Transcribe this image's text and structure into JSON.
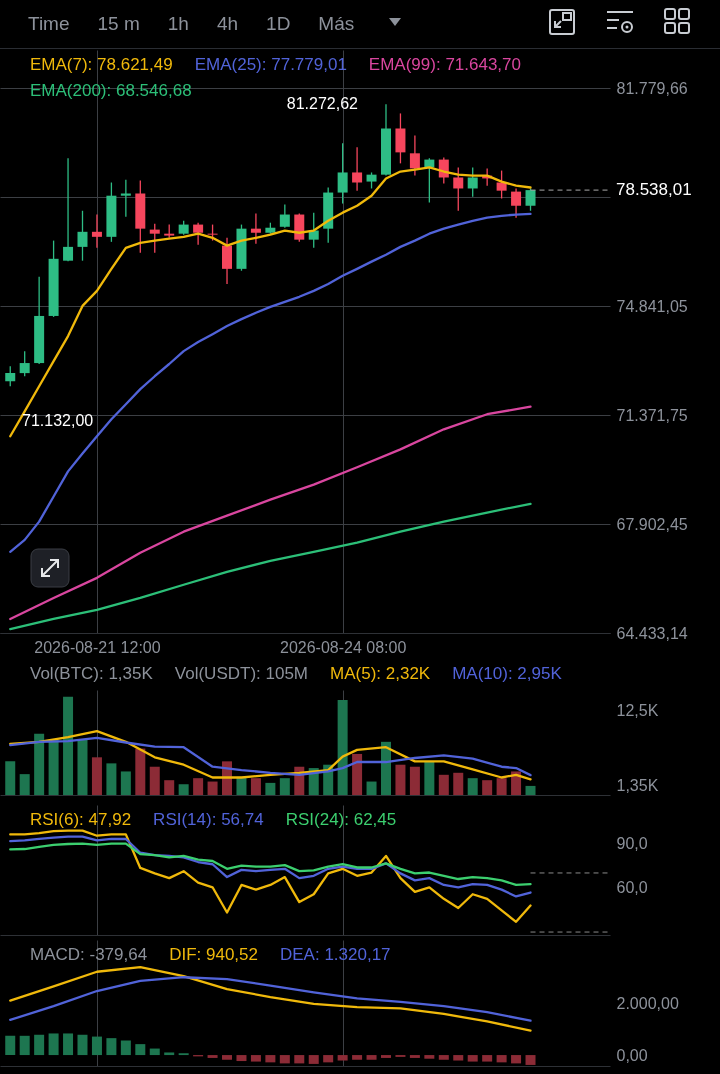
{
  "chart_data": [
    {
      "type": "other",
      "annotations": [
        "Time",
        "15 m",
        "1h",
        "4h",
        "1D",
        "Más"
      ]
    },
    {
      "type": "candlestick",
      "legend": "top",
      "grid": true,
      "x": [
        "2026-08-20T12:00",
        "2026-08-20T16:00",
        "2026-08-20T20:00",
        "2026-08-21T00:00",
        "2026-08-21T04:00",
        "2026-08-21T08:00",
        "2026-08-21T12:00",
        "2026-08-21T16:00",
        "2026-08-21T20:00",
        "2026-08-22T00:00",
        "2026-08-22T04:00",
        "2026-08-22T08:00",
        "2026-08-22T12:00",
        "2026-08-22T16:00",
        "2026-08-22T20:00",
        "2026-08-23T00:00",
        "2026-08-23T04:00",
        "2026-08-23T08:00",
        "2026-08-23T12:00",
        "2026-08-23T16:00",
        "2026-08-23T20:00",
        "2026-08-24T00:00",
        "2026-08-24T04:00",
        "2026-08-24T08:00",
        "2026-08-24T12:00",
        "2026-08-24T16:00",
        "2026-08-24T20:00",
        "2026-08-25T00:00",
        "2026-08-25T04:00",
        "2026-08-25T08:00",
        "2026-08-25T12:00",
        "2026-08-25T16:00",
        "2026-08-25T20:00",
        "2026-08-26T00:00",
        "2026-08-26T04:00",
        "2026-08-26T08:00",
        "2026-08-26T12:00"
      ],
      "ohlc": [
        [
          72450,
          72930,
          72290,
          72710
        ],
        [
          72710,
          73410,
          72610,
          73030
        ],
        [
          73030,
          75780,
          73000,
          74530
        ],
        [
          74530,
          76930,
          74500,
          76350
        ],
        [
          76290,
          79550,
          76270,
          76730
        ],
        [
          76730,
          77880,
          76290,
          77210
        ],
        [
          77210,
          77760,
          76700,
          77050
        ],
        [
          77050,
          78780,
          76890,
          78360
        ],
        [
          78360,
          78870,
          77690,
          78430
        ],
        [
          78430,
          78840,
          76540,
          77310
        ],
        [
          77280,
          77470,
          76540,
          77150
        ],
        [
          77150,
          77440,
          77020,
          77090
        ],
        [
          77150,
          77560,
          77120,
          77440
        ],
        [
          77440,
          77500,
          76800,
          77180
        ],
        [
          77150,
          77440,
          76930,
          77120
        ],
        [
          76770,
          77020,
          75550,
          76030
        ],
        [
          76030,
          77440,
          75970,
          77310
        ],
        [
          77310,
          77790,
          76830,
          77180
        ],
        [
          77180,
          77500,
          77150,
          77340
        ],
        [
          77370,
          78080,
          77340,
          77760
        ],
        [
          77760,
          77790,
          76890,
          76960
        ],
        [
          76960,
          77820,
          76700,
          77250
        ],
        [
          77310,
          78620,
          76860,
          78460
        ],
        [
          78460,
          80030,
          78110,
          79100
        ],
        [
          79100,
          79900,
          78520,
          78780
        ],
        [
          78810,
          79100,
          78590,
          79030
        ],
        [
          79030,
          81272.62,
          79000,
          80500
        ],
        [
          80500,
          80980,
          79390,
          79740
        ],
        [
          79710,
          80280,
          79000,
          79230
        ],
        [
          79260,
          79550,
          78140,
          79510
        ],
        [
          79510,
          79580,
          78750,
          78940
        ],
        [
          78940,
          79260,
          77880,
          78590
        ],
        [
          78590,
          79260,
          78330,
          78940
        ],
        [
          79000,
          79230,
          78680,
          78910
        ],
        [
          78780,
          79160,
          78270,
          78520
        ],
        [
          78490,
          78590,
          77660,
          78040
        ],
        [
          78040,
          78590,
          77880,
          78538.01
        ]
      ],
      "colors": [
        "#2ebd85",
        "#2ebd85",
        "#2ebd85",
        "#2ebd85",
        "#2ebd85",
        "#2ebd85",
        "#f6465d",
        "#2ebd85",
        "#2ebd85",
        "#f6465d",
        "#f6465d",
        "#f6465d",
        "#2ebd85",
        "#f6465d",
        "#f6465d",
        "#f6465d",
        "#2ebd85",
        "#f6465d",
        "#2ebd85",
        "#2ebd85",
        "#f6465d",
        "#2ebd85",
        "#2ebd85",
        "#2ebd85",
        "#f6465d",
        "#2ebd85",
        "#2ebd85",
        "#f6465d",
        "#f6465d",
        "#2ebd85",
        "#f6465d",
        "#f6465d",
        "#2ebd85",
        "#f6465d",
        "#f6465d",
        "#f6465d",
        "#2ebd85"
      ],
      "series": [
        {
          "name": "EMA(7): 78.621,49",
          "type": "line",
          "color": "#f0b90b",
          "values": [
            70700,
            71490,
            72290,
            73090,
            73890,
            74850,
            75330,
            76030,
            76700,
            76860,
            76930,
            76990,
            77050,
            77150,
            77020,
            76770,
            76930,
            77020,
            77120,
            77250,
            77180,
            77250,
            77560,
            77820,
            78040,
            78360,
            78910,
            79130,
            79190,
            79260,
            79130,
            79030,
            79000,
            79000,
            78810,
            78680,
            78621.49
          ]
        },
        {
          "name": "EMA(25): 77.779,01",
          "type": "line",
          "color": "#5163d9",
          "values": [
            67020,
            67400,
            67980,
            68780,
            69580,
            70150,
            70700,
            71240,
            71720,
            72200,
            72610,
            73000,
            73410,
            73700,
            73950,
            74210,
            74430,
            74630,
            74820,
            74980,
            75140,
            75330,
            75550,
            75810,
            76030,
            76260,
            76480,
            76730,
            76930,
            77150,
            77310,
            77440,
            77560,
            77660,
            77720,
            77760,
            77779.01
          ]
        },
        {
          "name": "EMA(99): 71.643,70",
          "type": "line",
          "color": "#d9469f",
          "x": [
            "2026-08-20T12:00",
            "2026-08-21T00:00",
            "2026-08-21T12:00",
            "2026-08-22T00:00",
            "2026-08-22T12:00",
            "2026-08-23T00:00",
            "2026-08-23T12:00",
            "2026-08-24T00:00",
            "2026-08-24T12:00",
            "2026-08-25T00:00",
            "2026-08-25T12:00",
            "2026-08-26T00:00",
            "2026-08-26T12:00"
          ],
          "values": [
            64880,
            65550,
            66190,
            66990,
            67660,
            68170,
            68680,
            69160,
            69710,
            70280,
            70920,
            71400,
            71643.7
          ]
        },
        {
          "name": "EMA(200): 68.546,68",
          "type": "line",
          "color": "#2cbf78",
          "x": [
            "2026-08-20T12:00",
            "2026-08-21T00:00",
            "2026-08-21T12:00",
            "2026-08-22T00:00",
            "2026-08-22T12:00",
            "2026-08-23T00:00",
            "2026-08-23T12:00",
            "2026-08-24T00:00",
            "2026-08-24T12:00",
            "2026-08-25T00:00",
            "2026-08-25T12:00",
            "2026-08-26T00:00",
            "2026-08-26T12:00"
          ],
          "values": [
            64560,
            64880,
            65170,
            65550,
            65970,
            66380,
            66730,
            67020,
            67310,
            67660,
            67980,
            68270,
            68546.68
          ]
        }
      ],
      "xlim": [
        "2026-08-20T09:10",
        "2026-08-27T10:00"
      ],
      "xticks": [
        {
          "value": "2026-08-21T12:00",
          "label": "2026-08-21 12:00"
        },
        {
          "value": "2026-08-24T08:00",
          "label": "2026-08-24 08:00"
        }
      ],
      "ylim": [
        64433.14,
        83000
      ],
      "yticks": [
        {
          "value": 64433.14,
          "label": "64.433,14"
        },
        {
          "value": 67902.45,
          "label": "67.902,45"
        },
        {
          "value": 71371.75,
          "label": "71.371,75"
        },
        {
          "value": 74841.05,
          "label": "74.841,05"
        },
        {
          "value": 78310.35,
          "label": null
        },
        {
          "value": 81779.66,
          "label": "81.779,66"
        }
      ],
      "ref_lines": [
        {
          "axis": "y",
          "value": 78538.01,
          "label": "78.538,01",
          "line_style": "dashed",
          "color": "#aaaaaa"
        }
      ],
      "annotations": [
        {
          "text": "81.272,62",
          "x": "2026-08-24T20:00",
          "y": 81272.62
        },
        "71.132,00"
      ]
    },
    {
      "type": "bar",
      "legend": "top",
      "grid": "x",
      "tick_labels": "y",
      "x": [
        "2026-08-20T12:00",
        "2026-08-20T16:00",
        "2026-08-20T20:00",
        "2026-08-21T00:00",
        "2026-08-21T04:00",
        "2026-08-21T08:00",
        "2026-08-21T12:00",
        "2026-08-21T16:00",
        "2026-08-21T20:00",
        "2026-08-22T00:00",
        "2026-08-22T04:00",
        "2026-08-22T08:00",
        "2026-08-22T12:00",
        "2026-08-22T16:00",
        "2026-08-22T20:00",
        "2026-08-23T00:00",
        "2026-08-23T04:00",
        "2026-08-23T08:00",
        "2026-08-23T12:00",
        "2026-08-23T16:00",
        "2026-08-23T20:00",
        "2026-08-24T00:00",
        "2026-08-24T04:00",
        "2026-08-24T08:00",
        "2026-08-24T12:00",
        "2026-08-24T16:00",
        "2026-08-24T20:00",
        "2026-08-25T00:00",
        "2026-08-25T04:00",
        "2026-08-25T08:00",
        "2026-08-25T12:00",
        "2026-08-25T16:00",
        "2026-08-25T20:00",
        "2026-08-26T00:00",
        "2026-08-26T04:00",
        "2026-08-26T08:00",
        "2026-08-26T12:00"
      ],
      "values": [
        5000,
        3100,
        9100,
        8200,
        14600,
        8300,
        5600,
        4700,
        3500,
        6900,
        4200,
        2200,
        1600,
        2500,
        2000,
        5000,
        2700,
        2500,
        1800,
        2500,
        4200,
        4000,
        4500,
        14100,
        6100,
        2000,
        7900,
        4500,
        4200,
        4900,
        3000,
        3300,
        2500,
        2200,
        2500,
        3500,
        1350
      ],
      "colors": [
        "#1d7650",
        "#1d7650",
        "#1d7650",
        "#1d7650",
        "#1d7650",
        "#1d7650",
        "#8c2b36",
        "#1d7650",
        "#1d7650",
        "#8c2b36",
        "#8c2b36",
        "#8c2b36",
        "#1d7650",
        "#8c2b36",
        "#8c2b36",
        "#8c2b36",
        "#1d7650",
        "#8c2b36",
        "#1d7650",
        "#1d7650",
        "#8c2b36",
        "#1d7650",
        "#1d7650",
        "#1d7650",
        "#8c2b36",
        "#1d7650",
        "#1d7650",
        "#8c2b36",
        "#8c2b36",
        "#1d7650",
        "#8c2b36",
        "#8c2b36",
        "#1d7650",
        "#8c2b36",
        "#8c2b36",
        "#8c2b36",
        "#1d7650"
      ],
      "series": [
        {
          "name": "MA(5): 2,32K",
          "type": "line",
          "color": "#f0b90b",
          "x": [
            "2026-08-20T12:00",
            "2026-08-20T20:00",
            "2026-08-21T04:00",
            "2026-08-21T12:00",
            "2026-08-21T20:00",
            "2026-08-22T04:00",
            "2026-08-22T12:00",
            "2026-08-22T20:00",
            "2026-08-23T04:00",
            "2026-08-23T12:00",
            "2026-08-23T20:00",
            "2026-08-24T04:00",
            "2026-08-24T08:00",
            "2026-08-24T12:00",
            "2026-08-24T20:00",
            "2026-08-25T04:00",
            "2026-08-25T12:00",
            "2026-08-25T20:00",
            "2026-08-26T04:00",
            "2026-08-26T08:00",
            "2026-08-26T12:00"
          ],
          "values": [
            7600,
            7900,
            8600,
            9500,
            7900,
            5600,
            4500,
            2600,
            2600,
            3000,
            3300,
            3700,
            5700,
            6700,
            7100,
            5000,
            5000,
            3800,
            2600,
            3000,
            2320
          ]
        },
        {
          "name": "MA(10): 2,95K",
          "type": "line",
          "color": "#5163d9",
          "x": [
            "2026-08-20T12:00",
            "2026-08-20T20:00",
            "2026-08-21T04:00",
            "2026-08-21T12:00",
            "2026-08-21T20:00",
            "2026-08-22T04:00",
            "2026-08-22T12:00",
            "2026-08-22T20:00",
            "2026-08-23T04:00",
            "2026-08-23T12:00",
            "2026-08-23T20:00",
            "2026-08-24T04:00",
            "2026-08-24T08:00",
            "2026-08-24T12:00",
            "2026-08-24T20:00",
            "2026-08-25T04:00",
            "2026-08-25T12:00",
            "2026-08-25T20:00",
            "2026-08-26T04:00",
            "2026-08-26T08:00",
            "2026-08-26T12:00"
          ],
          "values": [
            7400,
            7900,
            8000,
            8500,
            7800,
            7200,
            7100,
            4200,
            3700,
            3300,
            3000,
            3500,
            4000,
            4900,
            4900,
            5500,
            5900,
            5400,
            4200,
            4000,
            2950
          ]
        }
      ],
      "xlim": [
        "2026-08-20T09:10",
        "2026-08-27T10:00"
      ],
      "xticks": [
        {
          "value": "2026-08-21T12:00",
          "label": null
        },
        {
          "value": "2026-08-24T08:00",
          "label": null
        }
      ],
      "ylim": [
        0,
        15600
      ],
      "yticks": [
        {
          "value": 12500,
          "label": "12,5K"
        },
        {
          "value": 1350,
          "label": "1,35K"
        }
      ],
      "annotations": [
        "Vol(BTC): 1,35K",
        "Vol(USDT): 105M"
      ]
    },
    {
      "type": "line",
      "legend": "top",
      "grid": "x",
      "tick_labels": "y",
      "x": [
        "2026-08-20T12:00",
        "2026-08-20T16:00",
        "2026-08-20T20:00",
        "2026-08-21T00:00",
        "2026-08-21T04:00",
        "2026-08-21T08:00",
        "2026-08-21T12:00",
        "2026-08-21T16:00",
        "2026-08-21T20:00",
        "2026-08-22T00:00",
        "2026-08-22T04:00",
        "2026-08-22T08:00",
        "2026-08-22T12:00",
        "2026-08-22T16:00",
        "2026-08-22T20:00",
        "2026-08-23T00:00",
        "2026-08-23T04:00",
        "2026-08-23T08:00",
        "2026-08-23T12:00",
        "2026-08-23T16:00",
        "2026-08-23T20:00",
        "2026-08-24T00:00",
        "2026-08-24T04:00",
        "2026-08-24T08:00",
        "2026-08-24T12:00",
        "2026-08-24T16:00",
        "2026-08-24T20:00",
        "2026-08-25T00:00",
        "2026-08-25T04:00",
        "2026-08-25T08:00",
        "2026-08-25T12:00",
        "2026-08-25T16:00",
        "2026-08-25T20:00",
        "2026-08-26T00:00",
        "2026-08-26T04:00",
        "2026-08-26T08:00",
        "2026-08-26T12:00"
      ],
      "series": [
        {
          "name": "RSI(6): 47,92",
          "color": "#f0b90b",
          "values": [
            96.1,
            96.1,
            97.0,
            98.3,
            98.6,
            98.6,
            95.2,
            96.1,
            96.1,
            73.4,
            69.7,
            66.5,
            71.2,
            63.4,
            60.3,
            43.2,
            61.9,
            58.7,
            61.9,
            67.2,
            50.3,
            55.6,
            69.7,
            72.8,
            68.1,
            70.3,
            81.5,
            66.5,
            57.2,
            60.3,
            52.5,
            46.3,
            55.6,
            52.5,
            44.7,
            36.9,
            47.92
          ]
        },
        {
          "name": "RSI(14): 56,74",
          "color": "#5163d9",
          "values": [
            91.5,
            92.1,
            93.0,
            93.9,
            94.6,
            94.6,
            92.1,
            93.0,
            93.0,
            83.7,
            82.1,
            81.5,
            80.5,
            77.4,
            75.9,
            67.2,
            72.1,
            71.2,
            72.1,
            72.8,
            66.5,
            68.1,
            72.8,
            74.3,
            72.8,
            72.8,
            76.5,
            69.7,
            65.0,
            66.5,
            61.9,
            60.3,
            62.5,
            61.9,
            58.7,
            54.1,
            56.74
          ]
        },
        {
          "name": "RSI(24): 62,45",
          "color": "#3ccf6f",
          "values": [
            85.9,
            86.2,
            87.7,
            89.0,
            89.6,
            89.9,
            89.0,
            89.9,
            89.9,
            82.7,
            82.1,
            80.5,
            81.5,
            79.0,
            78.1,
            72.8,
            74.9,
            74.3,
            74.3,
            75.3,
            71.2,
            71.8,
            74.3,
            75.9,
            73.7,
            73.7,
            76.5,
            72.8,
            69.7,
            70.3,
            68.1,
            65.9,
            67.2,
            66.5,
            65.0,
            61.9,
            62.45
          ]
        }
      ],
      "xlim": [
        "2026-08-20T09:10",
        "2026-08-27T10:00"
      ],
      "xticks": [
        {
          "value": "2026-08-21T12:00",
          "label": null
        },
        {
          "value": "2026-08-24T08:00",
          "label": null
        }
      ],
      "ylim": [
        28,
        116
      ],
      "yticks": [
        {
          "value": 90,
          "label": "90,0"
        },
        {
          "value": 60,
          "label": "60,0"
        }
      ],
      "ref_lines": [
        {
          "axis": "y",
          "value": 70,
          "line_style": "dashed",
          "color": "#8a8a8a"
        },
        {
          "axis": "y",
          "value": 30,
          "line_style": "dashed",
          "color": "#8a8a8a"
        }
      ]
    },
    {
      "type": "bar",
      "legend": "top",
      "grid": "x",
      "tick_labels": "y",
      "x": [
        "2026-08-20T12:00",
        "2026-08-20T16:00",
        "2026-08-20T20:00",
        "2026-08-21T00:00",
        "2026-08-21T04:00",
        "2026-08-21T08:00",
        "2026-08-21T12:00",
        "2026-08-21T16:00",
        "2026-08-21T20:00",
        "2026-08-22T00:00",
        "2026-08-22T04:00",
        "2026-08-22T08:00",
        "2026-08-22T12:00",
        "2026-08-22T16:00",
        "2026-08-22T20:00",
        "2026-08-23T00:00",
        "2026-08-23T04:00",
        "2026-08-23T08:00",
        "2026-08-23T12:00",
        "2026-08-23T16:00",
        "2026-08-23T20:00",
        "2026-08-24T00:00",
        "2026-08-24T04:00",
        "2026-08-24T08:00",
        "2026-08-24T12:00",
        "2026-08-24T16:00",
        "2026-08-24T20:00",
        "2026-08-25T00:00",
        "2026-08-25T04:00",
        "2026-08-25T08:00",
        "2026-08-25T12:00",
        "2026-08-25T16:00",
        "2026-08-25T20:00",
        "2026-08-26T00:00",
        "2026-08-26T04:00",
        "2026-08-26T08:00",
        "2026-08-26T12:00"
      ],
      "values": [
        740,
        740,
        780,
        830,
        830,
        780,
        710,
        650,
        560,
        420,
        250,
        100,
        70,
        -50,
        -110,
        -180,
        -230,
        -250,
        -280,
        -320,
        -320,
        -340,
        -280,
        -210,
        -180,
        -180,
        -110,
        -70,
        -110,
        -140,
        -180,
        -210,
        -250,
        -250,
        -280,
        -320,
        -379.64
      ],
      "colors": [
        "#1d7650",
        "#1d7650",
        "#1d7650",
        "#1d7650",
        "#1d7650",
        "#1d7650",
        "#1d7650",
        "#1d7650",
        "#1d7650",
        "#1d7650",
        "#1d7650",
        "#1d7650",
        "#1d7650",
        "#8c2b36",
        "#8c2b36",
        "#8c2b36",
        "#8c2b36",
        "#8c2b36",
        "#8c2b36",
        "#8c2b36",
        "#8c2b36",
        "#8c2b36",
        "#8c2b36",
        "#8c2b36",
        "#8c2b36",
        "#8c2b36",
        "#8c2b36",
        "#8c2b36",
        "#8c2b36",
        "#8c2b36",
        "#8c2b36",
        "#8c2b36",
        "#8c2b36",
        "#8c2b36",
        "#8c2b36",
        "#8c2b36",
        "#8c2b36"
      ],
      "series": [
        {
          "name": "DIF: 940,52",
          "type": "line",
          "color": "#f0b90b",
          "x": [
            "2026-08-20T12:00",
            "2026-08-21T00:00",
            "2026-08-21T12:00",
            "2026-08-22T00:00",
            "2026-08-22T12:00",
            "2026-08-23T00:00",
            "2026-08-23T12:00",
            "2026-08-24T00:00",
            "2026-08-24T12:00",
            "2026-08-25T00:00",
            "2026-08-25T12:00",
            "2026-08-26T00:00",
            "2026-08-26T12:00"
          ],
          "values": [
            2090,
            2640,
            3200,
            3380,
            3030,
            2530,
            2230,
            1970,
            1840,
            1790,
            1580,
            1290,
            940.52
          ]
        },
        {
          "name": "DEA: 1.320,17",
          "type": "line",
          "color": "#5163d9",
          "x": [
            "2026-08-20T12:00",
            "2026-08-21T00:00",
            "2026-08-21T12:00",
            "2026-08-22T00:00",
            "2026-08-22T12:00",
            "2026-08-23T00:00",
            "2026-08-23T12:00",
            "2026-08-24T00:00",
            "2026-08-24T12:00",
            "2026-08-25T00:00",
            "2026-08-25T12:00",
            "2026-08-26T00:00",
            "2026-08-26T12:00"
          ],
          "values": [
            1350,
            1880,
            2460,
            2850,
            2990,
            2920,
            2670,
            2410,
            2180,
            2040,
            1880,
            1650,
            1320.17
          ]
        }
      ],
      "xlim": [
        "2026-08-20T09:10",
        "2026-08-27T10:00"
      ],
      "xticks": [
        {
          "value": "2026-08-21T12:00",
          "label": null
        },
        {
          "value": "2026-08-24T08:00",
          "label": null
        }
      ],
      "ylim": [
        -420,
        4420
      ],
      "yticks": [
        {
          "value": 2000,
          "label": "2.000,00"
        },
        {
          "value": 0,
          "label": "0,00"
        }
      ],
      "annotations": [
        "MACD: -379,64"
      ]
    }
  ]
}
